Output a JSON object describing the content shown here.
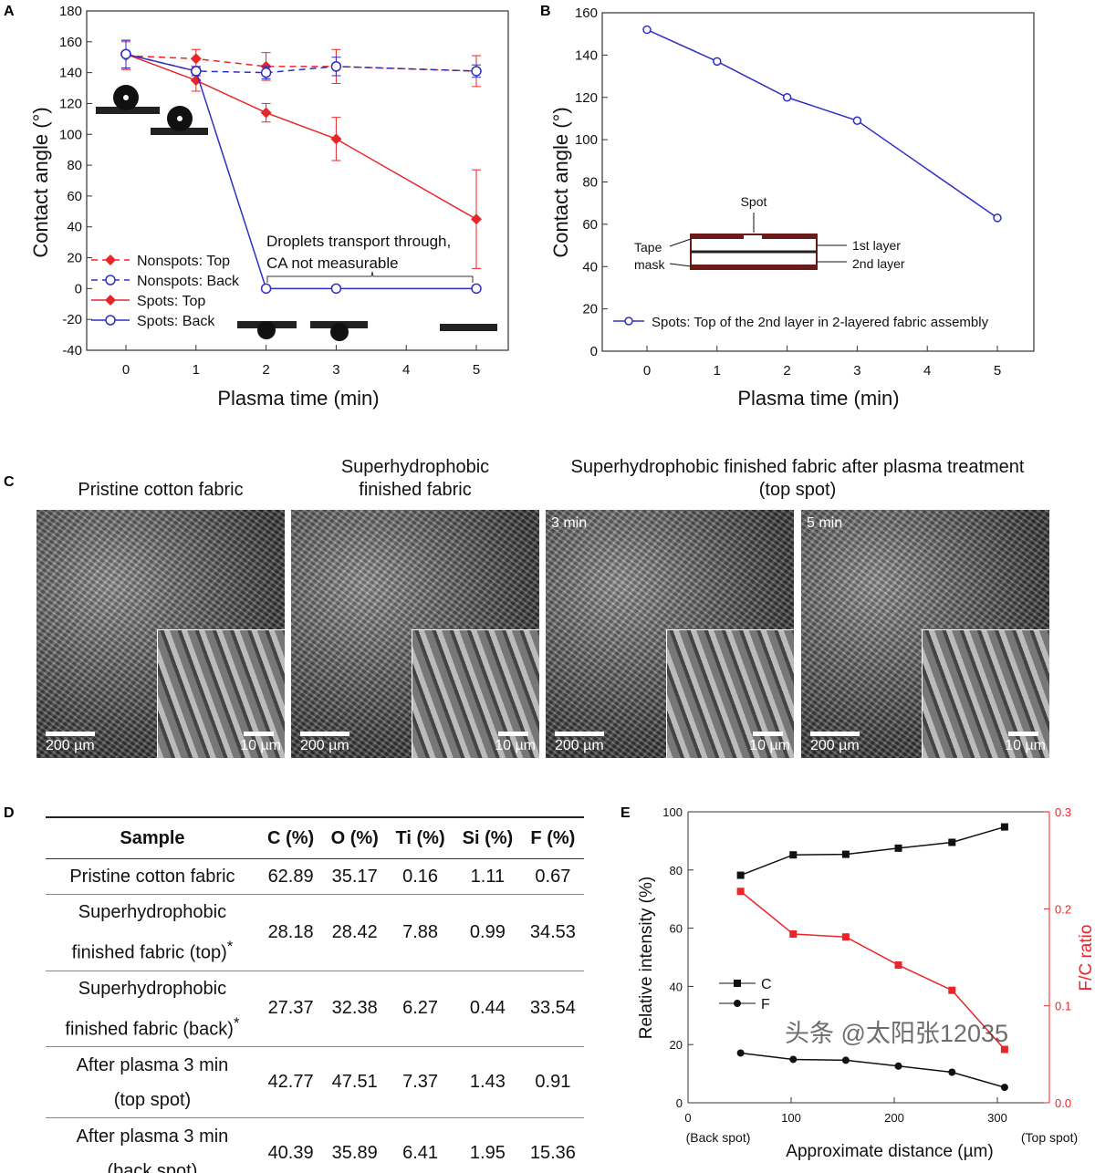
{
  "panel_labels": [
    "A",
    "B",
    "C",
    "D",
    "E"
  ],
  "chart_data": [
    {
      "type": "line",
      "panel": "A",
      "xlabel": "Plasma time (min)",
      "ylabel": "Contact angle (°)",
      "xlim": [
        -0.6,
        5.5
      ],
      "ylim": [
        -40,
        180
      ],
      "xticks": [
        0,
        1,
        2,
        3,
        4,
        5
      ],
      "yticks": [
        -40,
        -20,
        0,
        20,
        40,
        60,
        80,
        100,
        120,
        140,
        160,
        180
      ],
      "legend": "bottom-left",
      "annotation": [
        "Droplets transport through,",
        "CA not measurable"
      ],
      "series": [
        {
          "name": "Nonspots: Top",
          "color": "#e8262a",
          "dash": true,
          "marker": "diamond",
          "x": [
            0,
            1,
            2,
            3,
            5
          ],
          "y": [
            151,
            149,
            144,
            144,
            141
          ],
          "err": [
            9,
            6,
            9,
            11,
            10
          ]
        },
        {
          "name": "Nonspots: Back",
          "color": "#2f2fc4",
          "dash": true,
          "marker": "open-circle",
          "x": [
            0,
            1,
            2,
            3,
            5
          ],
          "y": [
            152,
            141,
            140,
            144,
            141
          ],
          "err": [
            9,
            3,
            4,
            6,
            4
          ]
        },
        {
          "name": "Spots: Top",
          "color": "#e8262a",
          "dash": false,
          "marker": "diamond",
          "x": [
            0,
            1,
            2,
            3,
            5
          ],
          "y": [
            152,
            135,
            114,
            97,
            45
          ],
          "err": [
            9,
            7,
            6,
            14,
            32
          ]
        },
        {
          "name": "Spots: Back",
          "color": "#2f2fc4",
          "dash": false,
          "marker": "open-circle",
          "x": [
            0,
            1,
            2,
            3,
            5
          ],
          "y": [
            152,
            141,
            0,
            0,
            0
          ],
          "err": [
            9,
            3,
            0,
            0,
            0
          ]
        }
      ]
    },
    {
      "type": "line",
      "panel": "B",
      "xlabel": "Plasma time (min)",
      "ylabel": "Contact angle (°)",
      "xlim": [
        -0.6,
        5.5
      ],
      "ylim": [
        0,
        160
      ],
      "xticks": [
        0,
        1,
        2,
        3,
        4,
        5
      ],
      "yticks": [
        0,
        20,
        40,
        60,
        80,
        100,
        120,
        140,
        160
      ],
      "legend": "bottom",
      "inset_labels": {
        "spot": "Spot",
        "tape1": "Tape",
        "tape2": "mask",
        "layer1": "1st layer",
        "layer2": "2nd layer"
      },
      "series": [
        {
          "name": "Spots: Top of the 2nd layer in 2-layered fabric assembly",
          "color": "#2f2fc4",
          "marker": "open-circle",
          "x": [
            0,
            1,
            2,
            3,
            5
          ],
          "y": [
            152,
            137,
            120,
            109,
            63
          ]
        }
      ]
    },
    {
      "type": "line",
      "panel": "E",
      "xlabel": "Approximate distance (µm)",
      "ylabel": "Relative intensity (%)",
      "y2label": "F/C ratio",
      "xlim": [
        0,
        350
      ],
      "ylim": [
        0,
        100
      ],
      "y2lim": [
        0,
        0.3
      ],
      "xticks": [
        0,
        100,
        200,
        300
      ],
      "yticks": [
        0,
        20,
        40,
        60,
        80,
        100
      ],
      "y2ticks": [
        "0.0",
        "0.1",
        "0.2",
        "0.3"
      ],
      "x_end_labels": [
        "(Back spot)",
        "(Top spot)"
      ],
      "legend": "left",
      "series": [
        {
          "name": "C",
          "color": "#111111",
          "marker": "square",
          "axis": "left",
          "x": [
            51,
            102,
            153,
            204,
            256,
            307
          ],
          "y": [
            78.2,
            85.2,
            85.4,
            87.5,
            89.5,
            94.8
          ]
        },
        {
          "name": "F",
          "color": "#111111",
          "marker": "circle",
          "axis": "left",
          "x": [
            51,
            102,
            153,
            204,
            256,
            307
          ],
          "y": [
            17.1,
            14.9,
            14.6,
            12.6,
            10.5,
            5.3
          ]
        },
        {
          "color": "#e8262a",
          "marker": "square",
          "axis": "right",
          "x": [
            51,
            102,
            153,
            204,
            256,
            307
          ],
          "y": [
            0.218,
            0.174,
            0.171,
            0.142,
            0.116,
            0.055
          ]
        }
      ]
    }
  ],
  "panelC": {
    "titles": [
      "Pristine cotton fabric",
      "Superhydrophobic\nfinished fabric",
      "Superhydrophobic finished fabric after plasma treatment\n(top spot)"
    ],
    "images": [
      {
        "corner": "",
        "scale_main": "200 µm",
        "scale_inset": "10 µm"
      },
      {
        "corner": "",
        "scale_main": "200 µm",
        "scale_inset": "10 µm"
      },
      {
        "corner": "3 min",
        "scale_main": "200 µm",
        "scale_inset": "10 µm"
      },
      {
        "corner": "5 min",
        "scale_main": "200 µm",
        "scale_inset": "10 µm"
      }
    ]
  },
  "tableD": {
    "headers": [
      "Sample",
      "C (%)",
      "O (%)",
      "Ti (%)",
      "Si (%)",
      "F (%)"
    ],
    "rows": [
      {
        "sample": [
          "Pristine cotton fabric"
        ],
        "vals": [
          "62.89",
          "35.17",
          "0.16",
          "1.11",
          "0.67"
        ]
      },
      {
        "sample": [
          "Superhydrophobic",
          "finished fabric (top)*"
        ],
        "vals": [
          "28.18",
          "28.42",
          "7.88",
          "0.99",
          "34.53"
        ]
      },
      {
        "sample": [
          "Superhydrophobic",
          "finished fabric (back)*"
        ],
        "vals": [
          "27.37",
          "32.38",
          "6.27",
          "0.44",
          "33.54"
        ]
      },
      {
        "sample": [
          "After plasma 3 min",
          "(top spot)"
        ],
        "vals": [
          "42.77",
          "47.51",
          "7.37",
          "1.43",
          "0.91"
        ]
      },
      {
        "sample": [
          "After plasma 3 min",
          "(back spot)"
        ],
        "vals": [
          "40.39",
          "35.89",
          "6.41",
          "1.95",
          "15.36"
        ]
      }
    ]
  },
  "watermark": "头条 @太阳张12035"
}
